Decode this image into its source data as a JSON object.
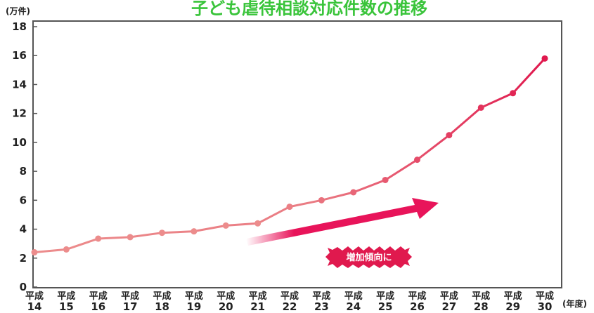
{
  "chart_data": {
    "type": "line",
    "title": "子ども虐待相談対応件数の推移",
    "y_unit_label": "(万件)",
    "x_unit_label": "(年度)",
    "x_era": "平成",
    "categories": [
      "14",
      "15",
      "16",
      "17",
      "18",
      "19",
      "20",
      "21",
      "22",
      "23",
      "24",
      "25",
      "26",
      "27",
      "28",
      "29",
      "30"
    ],
    "values": [
      2.4,
      2.6,
      3.35,
      3.45,
      3.75,
      3.85,
      4.25,
      4.4,
      5.55,
      6.0,
      6.55,
      7.4,
      8.8,
      10.5,
      12.4,
      13.4,
      15.8
    ],
    "y_ticks": [
      0,
      2,
      4,
      6,
      8,
      10,
      12,
      14,
      16,
      18
    ],
    "ylim": [
      0,
      18
    ],
    "grid": false,
    "colors": {
      "line_start": "#ec8c8c",
      "line_end": "#e0194e",
      "arrow": "#e8145a",
      "badge": "#e0194e",
      "title": "#39c43a",
      "frame": "#555555"
    },
    "annotation": {
      "label": "増加傾向に"
    }
  }
}
